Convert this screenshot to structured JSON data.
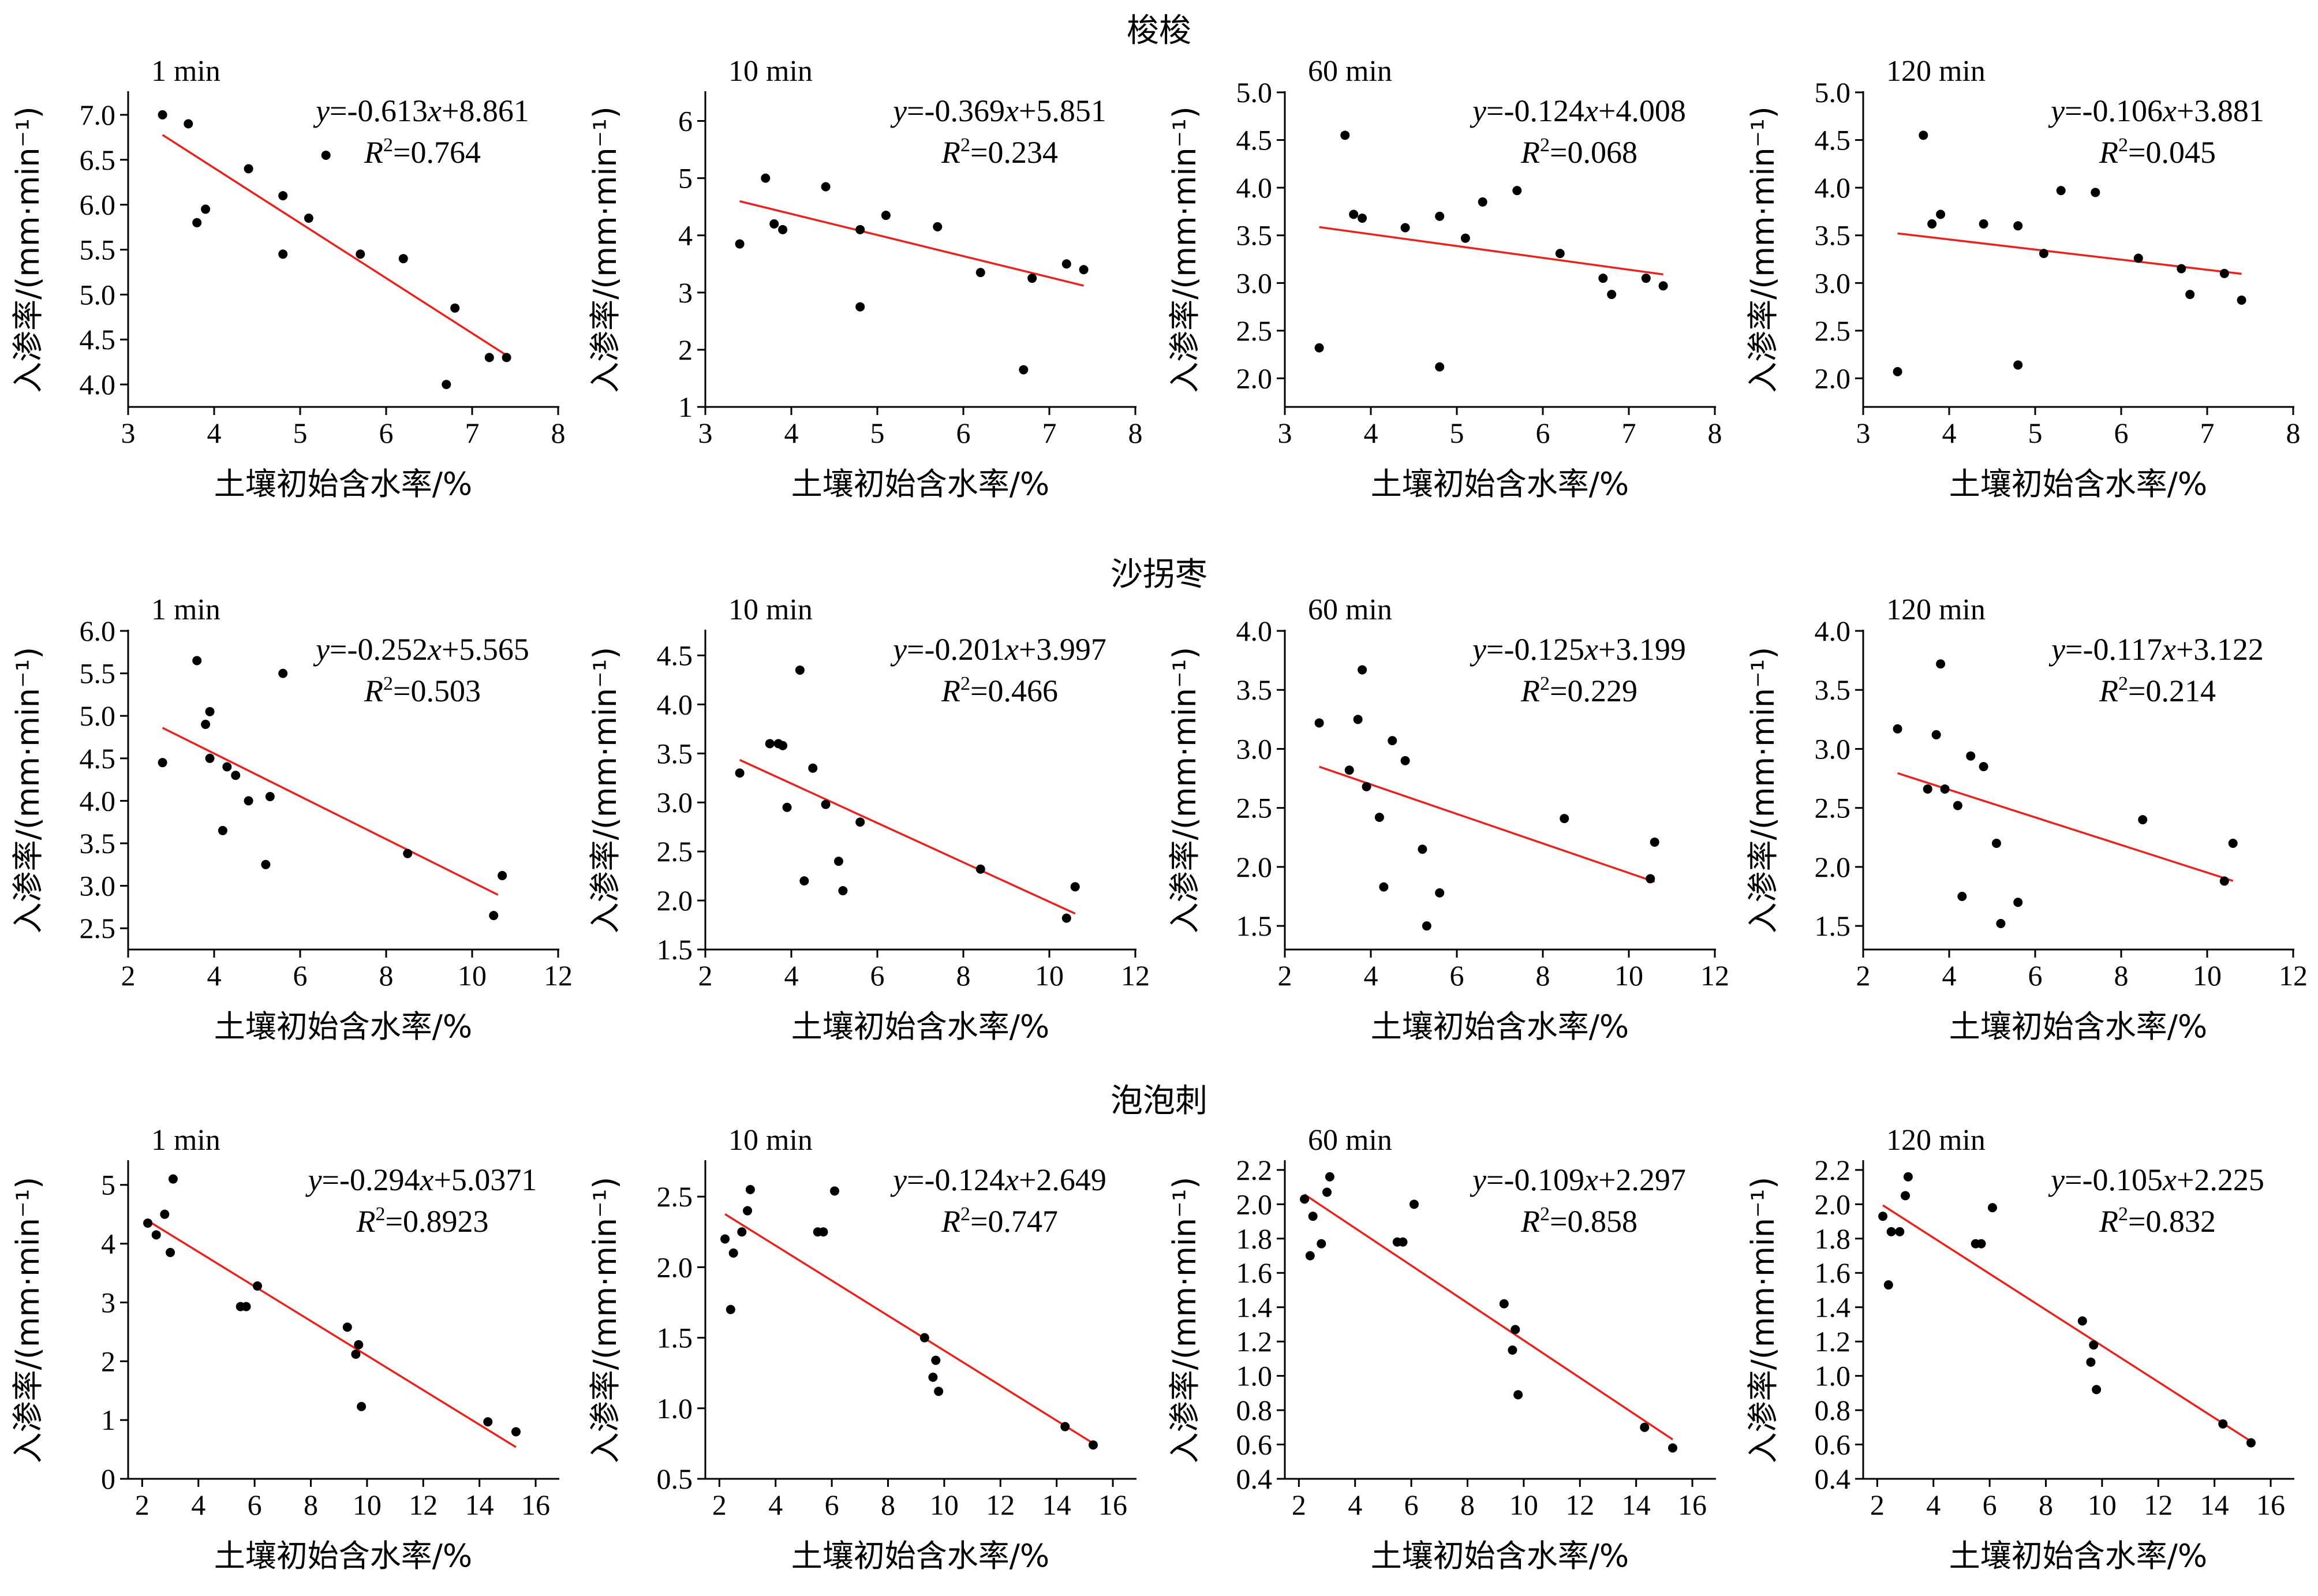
{
  "rows": [
    {
      "title": "梭梭"
    },
    {
      "title": "沙拐枣"
    },
    {
      "title": "泡泡刺"
    }
  ],
  "common": {
    "xlabel": "土壤初始含水率/%",
    "ylabel": "入渗率/(mm·min⁻¹)",
    "point_color": "#000000",
    "fit_color": "#e8231e"
  },
  "chart_data": [
    {
      "type": "scatter",
      "row": 0,
      "panel": "1 min",
      "xlim": [
        3,
        8
      ],
      "xticks": [
        3,
        4,
        5,
        6,
        7,
        8
      ],
      "ylim": [
        3.75,
        7.25
      ],
      "yticks": [
        4.0,
        4.5,
        5.0,
        5.5,
        6.0,
        6.5,
        7.0
      ],
      "ydec": 1,
      "points": [
        [
          3.4,
          7.0
        ],
        [
          3.7,
          6.9
        ],
        [
          3.8,
          5.8
        ],
        [
          3.9,
          5.95
        ],
        [
          4.4,
          6.4
        ],
        [
          4.8,
          6.1
        ],
        [
          4.8,
          5.45
        ],
        [
          5.1,
          5.85
        ],
        [
          5.3,
          6.55
        ],
        [
          5.7,
          5.45
        ],
        [
          6.2,
          5.4
        ],
        [
          6.7,
          4.0
        ],
        [
          6.8,
          4.85
        ],
        [
          7.2,
          4.3
        ],
        [
          7.4,
          4.3
        ]
      ],
      "fit": {
        "slope": -0.613,
        "intercept": 8.861,
        "x": [
          3.4,
          7.4
        ]
      },
      "equation": "y=-0.613x+8.861",
      "r2": "0.764"
    },
    {
      "type": "scatter",
      "row": 0,
      "panel": "10 min",
      "xlim": [
        3,
        8
      ],
      "xticks": [
        3,
        4,
        5,
        6,
        7,
        8
      ],
      "ylim": [
        1,
        6.5
      ],
      "yticks": [
        1,
        2,
        3,
        4,
        5,
        6
      ],
      "ydec": 0,
      "points": [
        [
          3.4,
          3.85
        ],
        [
          3.7,
          5.0
        ],
        [
          3.8,
          4.2
        ],
        [
          3.9,
          4.1
        ],
        [
          4.4,
          4.85
        ],
        [
          4.8,
          4.1
        ],
        [
          4.8,
          2.75
        ],
        [
          5.1,
          4.35
        ],
        [
          5.7,
          4.15
        ],
        [
          6.2,
          3.35
        ],
        [
          6.7,
          1.65
        ],
        [
          6.8,
          3.25
        ],
        [
          7.2,
          3.5
        ],
        [
          7.4,
          3.4
        ]
      ],
      "fit": {
        "slope": -0.369,
        "intercept": 5.851,
        "x": [
          3.4,
          7.4
        ]
      },
      "equation": "y=-0.369x+5.851",
      "r2": "0.234"
    },
    {
      "type": "scatter",
      "row": 0,
      "panel": "60 min",
      "xlim": [
        3,
        8
      ],
      "xticks": [
        3,
        4,
        5,
        6,
        7,
        8
      ],
      "ylim": [
        1.7,
        5.0
      ],
      "yticks": [
        2.0,
        2.5,
        3.0,
        3.5,
        4.0,
        4.5,
        5.0
      ],
      "ydec": 1,
      "points": [
        [
          3.4,
          2.32
        ],
        [
          3.7,
          4.55
        ],
        [
          3.8,
          3.72
        ],
        [
          3.9,
          3.68
        ],
        [
          4.4,
          3.58
        ],
        [
          4.8,
          3.7
        ],
        [
          4.8,
          2.12
        ],
        [
          5.1,
          3.47
        ],
        [
          5.3,
          3.85
        ],
        [
          5.7,
          3.97
        ],
        [
          6.2,
          3.31
        ],
        [
          6.7,
          3.05
        ],
        [
          6.8,
          2.88
        ],
        [
          7.2,
          3.05
        ],
        [
          7.4,
          2.97
        ]
      ],
      "fit": {
        "slope": -0.124,
        "intercept": 4.008,
        "x": [
          3.4,
          7.4
        ]
      },
      "equation": "y=-0.124x+4.008",
      "r2": "0.068"
    },
    {
      "type": "scatter",
      "row": 0,
      "panel": "120 min",
      "xlim": [
        3,
        8
      ],
      "xticks": [
        3,
        4,
        5,
        6,
        7,
        8
      ],
      "ylim": [
        1.7,
        5.0
      ],
      "yticks": [
        2.0,
        2.5,
        3.0,
        3.5,
        4.0,
        4.5,
        5.0
      ],
      "ydec": 1,
      "points": [
        [
          3.4,
          2.07
        ],
        [
          3.7,
          4.55
        ],
        [
          3.8,
          3.62
        ],
        [
          3.9,
          3.72
        ],
        [
          4.4,
          3.62
        ],
        [
          4.8,
          3.6
        ],
        [
          4.8,
          2.14
        ],
        [
          5.1,
          3.31
        ],
        [
          5.3,
          3.97
        ],
        [
          5.7,
          3.95
        ],
        [
          6.2,
          3.26
        ],
        [
          6.7,
          3.15
        ],
        [
          6.8,
          2.88
        ],
        [
          7.2,
          3.1
        ],
        [
          7.4,
          2.82
        ]
      ],
      "fit": {
        "slope": -0.106,
        "intercept": 3.881,
        "x": [
          3.4,
          7.4
        ]
      },
      "equation": "y=-0.106x+3.881",
      "r2": "0.045"
    },
    {
      "type": "scatter",
      "row": 1,
      "panel": "1 min",
      "xlim": [
        2,
        12
      ],
      "xticks": [
        2,
        4,
        6,
        8,
        10,
        12
      ],
      "ylim": [
        2.25,
        6.0
      ],
      "yticks": [
        2.5,
        3.0,
        3.5,
        4.0,
        4.5,
        5.0,
        5.5,
        6.0
      ],
      "ydec": 1,
      "points": [
        [
          2.8,
          4.45
        ],
        [
          3.6,
          5.65
        ],
        [
          3.8,
          4.9
        ],
        [
          3.9,
          5.05
        ],
        [
          3.9,
          4.5
        ],
        [
          4.2,
          3.65
        ],
        [
          4.3,
          4.4
        ],
        [
          4.5,
          4.3
        ],
        [
          4.8,
          4.0
        ],
        [
          5.2,
          3.25
        ],
        [
          5.3,
          4.05
        ],
        [
          5.6,
          5.5
        ],
        [
          8.5,
          3.38
        ],
        [
          10.5,
          2.65
        ],
        [
          10.7,
          3.12
        ]
      ],
      "fit": {
        "slope": -0.252,
        "intercept": 5.565,
        "x": [
          2.8,
          10.6
        ]
      },
      "equation": "y=-0.252x+5.565",
      "r2": "0.503"
    },
    {
      "type": "scatter",
      "row": 1,
      "panel": "10 min",
      "xlim": [
        2,
        12
      ],
      "xticks": [
        2,
        4,
        6,
        8,
        10,
        12
      ],
      "ylim": [
        1.5,
        4.75
      ],
      "yticks": [
        1.5,
        2.0,
        2.5,
        3.0,
        3.5,
        4.0,
        4.5
      ],
      "ydec": 1,
      "points": [
        [
          2.8,
          3.3
        ],
        [
          3.5,
          3.6
        ],
        [
          3.7,
          3.6
        ],
        [
          3.8,
          3.58
        ],
        [
          3.9,
          2.95
        ],
        [
          4.2,
          4.35
        ],
        [
          4.3,
          2.2
        ],
        [
          4.5,
          3.35
        ],
        [
          4.8,
          2.98
        ],
        [
          5.1,
          2.4
        ],
        [
          5.2,
          2.1
        ],
        [
          5.6,
          2.8
        ],
        [
          8.4,
          2.32
        ],
        [
          10.4,
          1.82
        ],
        [
          10.6,
          2.14
        ]
      ],
      "fit": {
        "slope": -0.201,
        "intercept": 3.997,
        "x": [
          2.8,
          10.6
        ]
      },
      "equation": "y=-0.201x+3.997",
      "r2": "0.466"
    },
    {
      "type": "scatter",
      "row": 1,
      "panel": "60 min",
      "xlim": [
        2,
        12
      ],
      "xticks": [
        2,
        4,
        6,
        8,
        10,
        12
      ],
      "ylim": [
        1.3,
        4.0
      ],
      "yticks": [
        1.5,
        2.0,
        2.5,
        3.0,
        3.5,
        4.0
      ],
      "ydec": 1,
      "points": [
        [
          2.8,
          3.22
        ],
        [
          3.5,
          2.82
        ],
        [
          3.7,
          3.25
        ],
        [
          3.8,
          3.67
        ],
        [
          3.9,
          2.68
        ],
        [
          4.2,
          2.42
        ],
        [
          4.3,
          1.83
        ],
        [
          4.5,
          3.07
        ],
        [
          4.8,
          2.9
        ],
        [
          5.2,
          2.15
        ],
        [
          5.3,
          1.5
        ],
        [
          5.6,
          1.78
        ],
        [
          8.5,
          2.41
        ],
        [
          10.5,
          1.9
        ],
        [
          10.6,
          2.21
        ]
      ],
      "fit": {
        "slope": -0.125,
        "intercept": 3.199,
        "x": [
          2.8,
          10.6
        ]
      },
      "equation": "y=-0.125x+3.199",
      "r2": "0.229"
    },
    {
      "type": "scatter",
      "row": 1,
      "panel": "120 min",
      "xlim": [
        2,
        12
      ],
      "xticks": [
        2,
        4,
        6,
        8,
        10,
        12
      ],
      "ylim": [
        1.3,
        4.0
      ],
      "yticks": [
        1.5,
        2.0,
        2.5,
        3.0,
        3.5,
        4.0
      ],
      "ydec": 1,
      "points": [
        [
          2.8,
          3.17
        ],
        [
          3.5,
          2.66
        ],
        [
          3.7,
          3.12
        ],
        [
          3.8,
          3.72
        ],
        [
          3.9,
          2.66
        ],
        [
          4.2,
          2.52
        ],
        [
          4.3,
          1.75
        ],
        [
          4.5,
          2.94
        ],
        [
          4.8,
          2.85
        ],
        [
          5.1,
          2.2
        ],
        [
          5.2,
          1.52
        ],
        [
          5.6,
          1.7
        ],
        [
          8.5,
          2.4
        ],
        [
          10.4,
          1.88
        ],
        [
          10.6,
          2.2
        ]
      ],
      "fit": {
        "slope": -0.117,
        "intercept": 3.122,
        "x": [
          2.8,
          10.6
        ]
      },
      "equation": "y=-0.117x+3.122",
      "r2": "0.214"
    },
    {
      "type": "scatter",
      "row": 2,
      "panel": "1 min",
      "xlim": [
        1.5,
        16.8
      ],
      "xticks": [
        2,
        4,
        6,
        8,
        10,
        12,
        14,
        16
      ],
      "ylim": [
        0,
        5.4
      ],
      "yticks": [
        0,
        1,
        2,
        3,
        4,
        5
      ],
      "ydec": 0,
      "points": [
        [
          2.2,
          4.35
        ],
        [
          2.5,
          4.15
        ],
        [
          2.8,
          4.5
        ],
        [
          3.0,
          3.85
        ],
        [
          3.1,
          5.1
        ],
        [
          5.5,
          2.93
        ],
        [
          5.7,
          2.93
        ],
        [
          6.1,
          3.28
        ],
        [
          9.3,
          2.58
        ],
        [
          9.6,
          2.12
        ],
        [
          9.7,
          2.28
        ],
        [
          9.8,
          1.23
        ],
        [
          14.3,
          0.97
        ],
        [
          15.3,
          0.8
        ]
      ],
      "fit": {
        "slope": -0.294,
        "intercept": 5.0371,
        "x": [
          2.2,
          15.3
        ]
      },
      "equation": "y=-0.294x+5.0371",
      "r2": "0.8923"
    },
    {
      "type": "scatter",
      "row": 2,
      "panel": "10 min",
      "xlim": [
        1.5,
        16.8
      ],
      "xticks": [
        2,
        4,
        6,
        8,
        10,
        12,
        14,
        16
      ],
      "ylim": [
        0.5,
        2.75
      ],
      "yticks": [
        0.5,
        1.0,
        1.5,
        2.0,
        2.5
      ],
      "ydec": 1,
      "points": [
        [
          2.2,
          2.2
        ],
        [
          2.4,
          1.7
        ],
        [
          2.5,
          2.1
        ],
        [
          2.8,
          2.25
        ],
        [
          3.0,
          2.4
        ],
        [
          3.1,
          2.55
        ],
        [
          5.5,
          2.25
        ],
        [
          5.7,
          2.25
        ],
        [
          6.1,
          2.54
        ],
        [
          9.3,
          1.5
        ],
        [
          9.6,
          1.22
        ],
        [
          9.7,
          1.34
        ],
        [
          9.8,
          1.12
        ],
        [
          14.3,
          0.87
        ],
        [
          15.3,
          0.74
        ]
      ],
      "fit": {
        "slope": -0.124,
        "intercept": 2.649,
        "x": [
          2.2,
          15.3
        ]
      },
      "equation": "y=-0.124x+2.649",
      "r2": "0.747"
    },
    {
      "type": "scatter",
      "row": 2,
      "panel": "60 min",
      "xlim": [
        1.5,
        16.8
      ],
      "xticks": [
        2,
        4,
        6,
        8,
        10,
        12,
        14,
        16
      ],
      "ylim": [
        0.4,
        2.25
      ],
      "yticks": [
        0.4,
        0.6,
        0.8,
        1.0,
        1.2,
        1.4,
        1.6,
        1.8,
        2.0,
        2.2
      ],
      "ydec": 1,
      "points": [
        [
          2.2,
          2.03
        ],
        [
          2.4,
          1.7
        ],
        [
          2.5,
          1.93
        ],
        [
          2.8,
          1.77
        ],
        [
          3.0,
          2.07
        ],
        [
          3.1,
          2.16
        ],
        [
          5.5,
          1.78
        ],
        [
          5.7,
          1.78
        ],
        [
          6.1,
          2.0
        ],
        [
          9.3,
          1.42
        ],
        [
          9.6,
          1.15
        ],
        [
          9.7,
          1.27
        ],
        [
          9.8,
          0.89
        ],
        [
          14.3,
          0.7
        ],
        [
          15.3,
          0.58
        ]
      ],
      "fit": {
        "slope": -0.109,
        "intercept": 2.297,
        "x": [
          2.2,
          15.3
        ]
      },
      "equation": "y=-0.109x+2.297",
      "r2": "0.858"
    },
    {
      "type": "scatter",
      "row": 2,
      "panel": "120 min",
      "xlim": [
        1.5,
        16.8
      ],
      "xticks": [
        2,
        4,
        6,
        8,
        10,
        12,
        14,
        16
      ],
      "ylim": [
        0.4,
        2.25
      ],
      "yticks": [
        0.4,
        0.6,
        0.8,
        1.0,
        1.2,
        1.4,
        1.6,
        1.8,
        2.0,
        2.2
      ],
      "ydec": 1,
      "points": [
        [
          2.2,
          1.93
        ],
        [
          2.4,
          1.53
        ],
        [
          2.5,
          1.84
        ],
        [
          2.8,
          1.84
        ],
        [
          3.0,
          2.05
        ],
        [
          3.1,
          2.16
        ],
        [
          5.5,
          1.77
        ],
        [
          5.7,
          1.77
        ],
        [
          6.1,
          1.98
        ],
        [
          9.3,
          1.32
        ],
        [
          9.6,
          1.08
        ],
        [
          9.7,
          1.18
        ],
        [
          9.8,
          0.92
        ],
        [
          14.3,
          0.72
        ],
        [
          15.3,
          0.61
        ]
      ],
      "fit": {
        "slope": -0.105,
        "intercept": 2.225,
        "x": [
          2.2,
          15.3
        ]
      },
      "equation": "y=-0.105x+2.225",
      "r2": "0.832"
    }
  ]
}
